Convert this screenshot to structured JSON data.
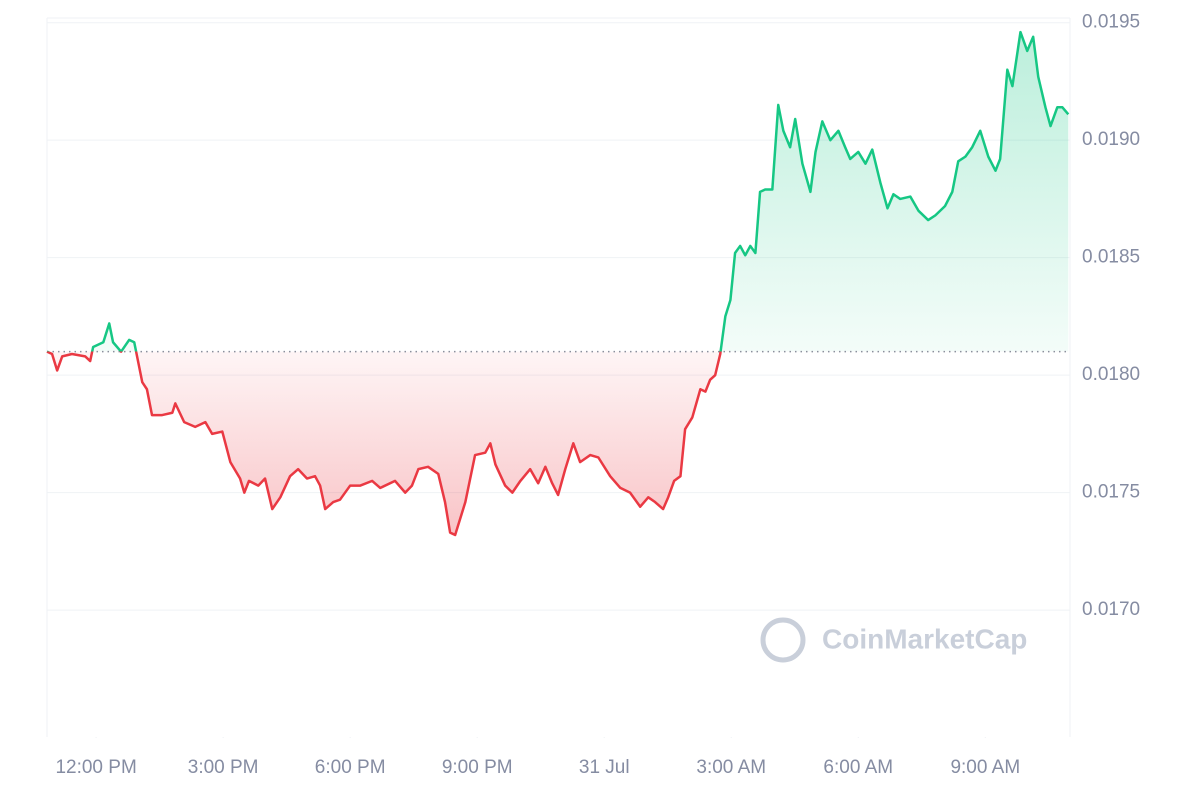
{
  "chart_data": {
    "type": "line",
    "watermark": "CoinMarketCap",
    "baseline": 0.0181,
    "up_color": "#16c784",
    "down_color": "#ea3943",
    "grid": true,
    "xlim": [
      -1.16,
      23.0
    ],
    "ylim": [
      0.01646,
      0.01952
    ],
    "xticks": [
      {
        "value": 0,
        "label": "12:00 PM"
      },
      {
        "value": 3,
        "label": "3:00 PM"
      },
      {
        "value": 6,
        "label": "6:00 PM"
      },
      {
        "value": 9,
        "label": "9:00 PM"
      },
      {
        "value": 12,
        "label": "31 Jul"
      },
      {
        "value": 15,
        "label": "3:00 AM"
      },
      {
        "value": 18,
        "label": "6:00 AM"
      },
      {
        "value": 21,
        "label": "9:00 AM"
      }
    ],
    "yticks": [
      0.0195,
      {
        "value": 0.019,
        "label": "0.0190"
      },
      0.0185,
      {
        "value": 0.018,
        "label": "0.0180"
      },
      0.0175,
      {
        "value": 0.017,
        "label": "0.0170"
      }
    ],
    "x": [
      -1.16,
      -1.04,
      -0.92,
      -0.8,
      -0.57,
      -0.26,
      -0.14,
      -0.07,
      0.17,
      0.31,
      0.4,
      0.59,
      0.78,
      0.9,
      1.09,
      1.2,
      1.32,
      1.56,
      1.8,
      1.87,
      2.08,
      2.34,
      2.58,
      2.74,
      2.98,
      3.17,
      3.4,
      3.5,
      3.61,
      3.83,
      3.99,
      4.16,
      4.35,
      4.58,
      4.77,
      4.98,
      5.17,
      5.29,
      5.41,
      5.6,
      5.76,
      6.0,
      6.24,
      6.52,
      6.71,
      7.06,
      7.3,
      7.46,
      7.61,
      7.84,
      8.08,
      8.24,
      8.36,
      8.48,
      8.72,
      8.95,
      9.19,
      9.31,
      9.43,
      9.66,
      9.83,
      10.02,
      10.25,
      10.44,
      10.61,
      10.77,
      10.91,
      11.08,
      11.27,
      11.43,
      11.67,
      11.86,
      12.14,
      12.38,
      12.61,
      12.85,
      13.04,
      13.2,
      13.39,
      13.51,
      13.65,
      13.8,
      13.91,
      14.08,
      14.27,
      14.39,
      14.5,
      14.62,
      14.74,
      14.86,
      14.98,
      15.09,
      15.21,
      15.33,
      15.45,
      15.57,
      15.68,
      15.8,
      15.97,
      16.11,
      16.23,
      16.39,
      16.51,
      16.68,
      16.87,
      16.99,
      17.15,
      17.34,
      17.53,
      17.69,
      17.81,
      18.0,
      18.17,
      18.33,
      18.52,
      18.69,
      18.83,
      18.99,
      19.23,
      19.42,
      19.65,
      19.82,
      20.05,
      20.22,
      20.36,
      20.53,
      20.69,
      20.88,
      21.07,
      21.24,
      21.35,
      21.52,
      21.64,
      21.83,
      21.99,
      22.13,
      22.25,
      22.42,
      22.54,
      22.7,
      22.82,
      22.96
    ],
    "values": [
      0.0181,
      0.01809,
      0.01802,
      0.01808,
      0.01809,
      0.01808,
      0.01806,
      0.01812,
      0.01814,
      0.01822,
      0.01814,
      0.0181,
      0.01815,
      0.01814,
      0.01797,
      0.01794,
      0.01783,
      0.01783,
      0.01784,
      0.01788,
      0.0178,
      0.01778,
      0.0178,
      0.01775,
      0.01776,
      0.01763,
      0.01756,
      0.0175,
      0.01755,
      0.01753,
      0.01756,
      0.01743,
      0.01748,
      0.01757,
      0.0176,
      0.01756,
      0.01757,
      0.01753,
      0.01743,
      0.01746,
      0.01747,
      0.01753,
      0.01753,
      0.01755,
      0.01752,
      0.01755,
      0.0175,
      0.01753,
      0.0176,
      0.01761,
      0.01758,
      0.01746,
      0.01733,
      0.01732,
      0.01746,
      0.01766,
      0.01767,
      0.01771,
      0.01762,
      0.01753,
      0.0175,
      0.01755,
      0.0176,
      0.01754,
      0.01761,
      0.01754,
      0.01749,
      0.0176,
      0.01771,
      0.01763,
      0.01766,
      0.01765,
      0.01757,
      0.01752,
      0.0175,
      0.01744,
      0.01748,
      0.01746,
      0.01743,
      0.01748,
      0.01755,
      0.01757,
      0.01777,
      0.01782,
      0.01794,
      0.01793,
      0.01798,
      0.018,
      0.01809,
      0.01825,
      0.01832,
      0.01852,
      0.01855,
      0.01851,
      0.01855,
      0.01852,
      0.01878,
      0.01879,
      0.01879,
      0.01915,
      0.01904,
      0.01897,
      0.01909,
      0.0189,
      0.01878,
      0.01895,
      0.01908,
      0.019,
      0.01904,
      0.01897,
      0.01892,
      0.01895,
      0.0189,
      0.01896,
      0.01882,
      0.01871,
      0.01877,
      0.01875,
      0.01876,
      0.0187,
      0.01866,
      0.01868,
      0.01872,
      0.01878,
      0.01891,
      0.01893,
      0.01897,
      0.01904,
      0.01893,
      0.01887,
      0.01892,
      0.0193,
      0.01923,
      0.01946,
      0.01938,
      0.01944,
      0.01927,
      0.01914,
      0.01906,
      0.01914,
      0.01914,
      0.01911
    ]
  }
}
